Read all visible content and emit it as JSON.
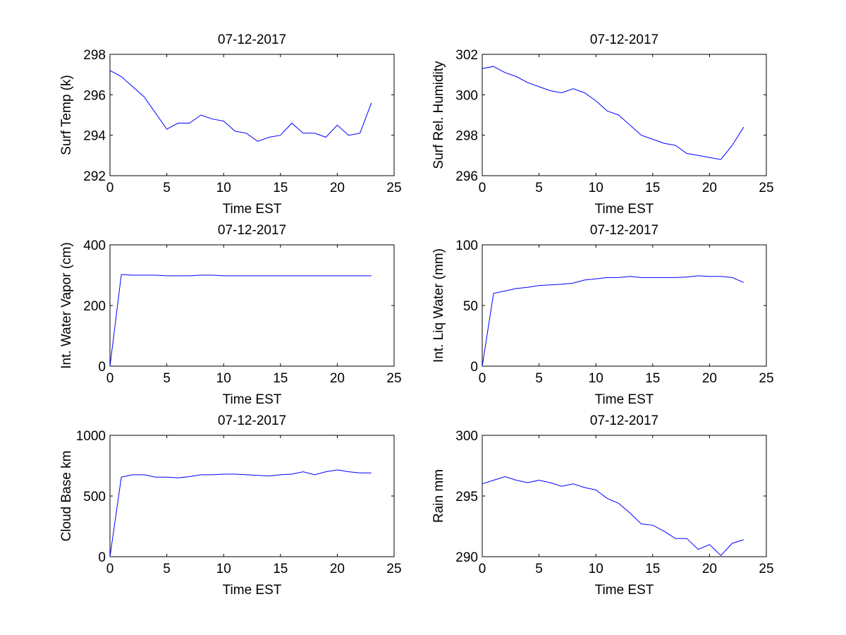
{
  "chart_data": [
    {
      "type": "line",
      "title": "07-12-2017",
      "xlabel": "Time EST",
      "ylabel": "Surf Temp (k)",
      "xlim": [
        0,
        25
      ],
      "ylim": [
        292,
        298
      ],
      "xticks": [
        0,
        5,
        10,
        15,
        20,
        25
      ],
      "yticks": [
        292,
        294,
        296,
        298
      ],
      "grid": false,
      "series": [
        {
          "name": "Surf Temp",
          "color": "#0000ff",
          "x": [
            0,
            1,
            2,
            3,
            4,
            5,
            6,
            7,
            8,
            9,
            10,
            11,
            12,
            13,
            14,
            15,
            16,
            17,
            18,
            19,
            20,
            21,
            22,
            23
          ],
          "y": [
            297.2,
            296.9,
            296.4,
            295.9,
            295.1,
            294.3,
            294.6,
            294.6,
            295.0,
            294.8,
            294.7,
            294.2,
            294.1,
            293.7,
            293.9,
            294.0,
            294.6,
            294.1,
            294.1,
            293.9,
            294.5,
            294.0,
            294.1,
            295.6
          ]
        }
      ]
    },
    {
      "type": "line",
      "title": "07-12-2017",
      "xlabel": "Time EST",
      "ylabel": "Surf Rel. Humidity",
      "xlim": [
        0,
        25
      ],
      "ylim": [
        296,
        302
      ],
      "xticks": [
        0,
        5,
        10,
        15,
        20,
        25
      ],
      "yticks": [
        296,
        298,
        300,
        302
      ],
      "grid": false,
      "series": [
        {
          "name": "Surf Rel. Humidity",
          "color": "#0000ff",
          "x": [
            0,
            1,
            2,
            3,
            4,
            5,
            6,
            7,
            8,
            9,
            10,
            11,
            12,
            13,
            14,
            15,
            16,
            17,
            18,
            19,
            20,
            21,
            22,
            23
          ],
          "y": [
            301.3,
            301.4,
            301.1,
            300.9,
            300.6,
            300.4,
            300.2,
            300.1,
            300.3,
            300.1,
            299.7,
            299.2,
            299.0,
            298.5,
            298.0,
            297.8,
            297.6,
            297.5,
            297.1,
            297.0,
            296.9,
            296.8,
            297.5,
            298.4
          ]
        }
      ]
    },
    {
      "type": "line",
      "title": "07-12-2017",
      "xlabel": "Time EST",
      "ylabel": "Int. Water Vapor (cm)",
      "xlim": [
        0,
        25
      ],
      "ylim": [
        0,
        400
      ],
      "xticks": [
        0,
        5,
        10,
        15,
        20,
        25
      ],
      "yticks": [
        0,
        200,
        400
      ],
      "grid": false,
      "series": [
        {
          "name": "Int. Water Vapor",
          "color": "#0000ff",
          "x": [
            0,
            1,
            2,
            3,
            4,
            5,
            6,
            7,
            8,
            9,
            10,
            11,
            12,
            13,
            14,
            15,
            16,
            17,
            18,
            19,
            20,
            21,
            22,
            23
          ],
          "y": [
            0,
            302,
            300,
            300,
            300,
            298,
            298,
            298,
            300,
            300,
            298,
            298,
            298,
            298,
            298,
            298,
            298,
            298,
            298,
            298,
            298,
            298,
            298,
            298
          ]
        }
      ]
    },
    {
      "type": "line",
      "title": "07-12-2017",
      "xlabel": "Time EST",
      "ylabel": "Int. Liq Water (mm)",
      "xlim": [
        0,
        25
      ],
      "ylim": [
        0,
        100
      ],
      "xticks": [
        0,
        5,
        10,
        15,
        20,
        25
      ],
      "yticks": [
        0,
        50,
        100
      ],
      "grid": false,
      "series": [
        {
          "name": "Int. Liq Water",
          "color": "#0000ff",
          "x": [
            0,
            1,
            2,
            3,
            4,
            5,
            6,
            7,
            8,
            9,
            10,
            11,
            12,
            13,
            14,
            15,
            16,
            17,
            18,
            19,
            20,
            21,
            22,
            23
          ],
          "y": [
            0,
            60,
            62,
            64,
            65,
            66.5,
            67,
            67.5,
            68.5,
            71,
            72,
            73,
            73,
            74,
            73,
            73,
            73,
            73,
            73.5,
            74.5,
            74,
            74,
            73,
            69
          ]
        }
      ]
    },
    {
      "type": "line",
      "title": "07-12-2017",
      "xlabel": "Time EST",
      "ylabel": "Cloud Base km",
      "xlim": [
        0,
        25
      ],
      "ylim": [
        0,
        1000
      ],
      "xticks": [
        0,
        5,
        10,
        15,
        20,
        25
      ],
      "yticks": [
        0,
        500,
        1000
      ],
      "grid": false,
      "series": [
        {
          "name": "Cloud Base",
          "color": "#0000ff",
          "x": [
            0,
            1,
            2,
            3,
            4,
            5,
            6,
            7,
            8,
            9,
            10,
            11,
            12,
            13,
            14,
            15,
            16,
            17,
            18,
            19,
            20,
            21,
            22,
            23
          ],
          "y": [
            0,
            655,
            675,
            675,
            655,
            655,
            650,
            660,
            675,
            675,
            680,
            680,
            675,
            670,
            665,
            675,
            680,
            700,
            675,
            700,
            715,
            700,
            690,
            690
          ]
        }
      ]
    },
    {
      "type": "line",
      "title": "07-12-2017",
      "xlabel": "Time EST",
      "ylabel": "Rain mm",
      "xlim": [
        0,
        25
      ],
      "ylim": [
        290,
        300
      ],
      "xticks": [
        0,
        5,
        10,
        15,
        20,
        25
      ],
      "yticks": [
        290,
        295,
        300
      ],
      "grid": false,
      "series": [
        {
          "name": "Rain",
          "color": "#0000ff",
          "x": [
            0,
            1,
            2,
            3,
            4,
            5,
            6,
            7,
            8,
            9,
            10,
            11,
            12,
            13,
            14,
            15,
            16,
            17,
            18,
            19,
            20,
            21,
            22,
            23
          ],
          "y": [
            296.0,
            296.3,
            296.6,
            296.3,
            296.1,
            296.3,
            296.1,
            295.8,
            296.0,
            295.7,
            295.5,
            294.8,
            294.4,
            293.6,
            292.7,
            292.6,
            292.1,
            291.5,
            291.5,
            290.6,
            291.0,
            290.1,
            291.1,
            291.4
          ]
        }
      ]
    }
  ]
}
